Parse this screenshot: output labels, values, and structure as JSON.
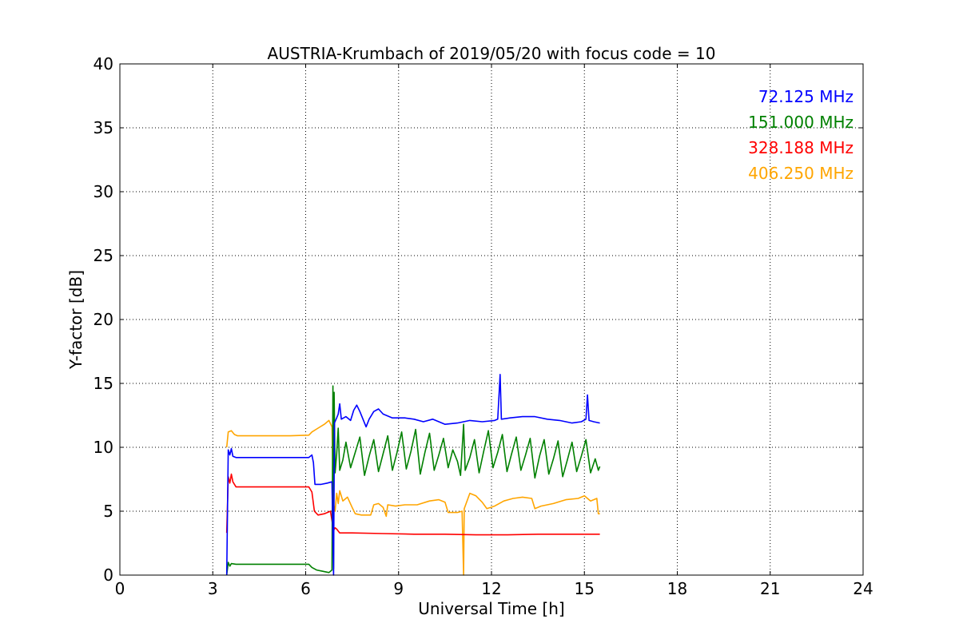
{
  "chart_data": {
    "type": "line",
    "title": "AUSTRIA-Krumbach of 2019/05/20 with focus code = 10",
    "xlabel": "Universal Time [h]",
    "ylabel": "Y-factor [dB]",
    "xlim": [
      0,
      24
    ],
    "ylim": [
      0,
      40
    ],
    "xticks": [
      0,
      3,
      6,
      9,
      12,
      15,
      18,
      21,
      24
    ],
    "yticks": [
      0,
      5,
      10,
      15,
      20,
      25,
      30,
      35,
      40
    ],
    "grid": true,
    "legend_placement": "top-right",
    "series": [
      {
        "name": "72.125 MHz",
        "color": "#0000ff",
        "points": [
          [
            3.45,
            0
          ],
          [
            3.5,
            9.8
          ],
          [
            3.55,
            9.4
          ],
          [
            3.6,
            9.9
          ],
          [
            3.65,
            9.3
          ],
          [
            3.75,
            9.2
          ],
          [
            4.5,
            9.2
          ],
          [
            5.5,
            9.2
          ],
          [
            6.1,
            9.2
          ],
          [
            6.2,
            9.4
          ],
          [
            6.25,
            8.8
          ],
          [
            6.3,
            7.1
          ],
          [
            6.5,
            7.1
          ],
          [
            6.7,
            7.2
          ],
          [
            6.85,
            7.3
          ],
          [
            6.9,
            0
          ],
          [
            6.93,
            11.9
          ],
          [
            7.0,
            12.3
          ],
          [
            7.05,
            12.6
          ],
          [
            7.1,
            13.4
          ],
          [
            7.15,
            12.2
          ],
          [
            7.3,
            12.4
          ],
          [
            7.45,
            12.1
          ],
          [
            7.55,
            12.9
          ],
          [
            7.65,
            13.3
          ],
          [
            7.75,
            12.8
          ],
          [
            7.85,
            12.2
          ],
          [
            7.95,
            11.6
          ],
          [
            8.05,
            12.2
          ],
          [
            8.2,
            12.8
          ],
          [
            8.35,
            13.0
          ],
          [
            8.5,
            12.6
          ],
          [
            8.8,
            12.3
          ],
          [
            9.2,
            12.3
          ],
          [
            9.5,
            12.2
          ],
          [
            9.8,
            12.0
          ],
          [
            10.1,
            12.2
          ],
          [
            10.5,
            11.8
          ],
          [
            10.9,
            11.9
          ],
          [
            11.3,
            12.1
          ],
          [
            11.7,
            12.0
          ],
          [
            12.1,
            12.1
          ],
          [
            12.2,
            12.2
          ],
          [
            12.28,
            15.7
          ],
          [
            12.32,
            12.2
          ],
          [
            12.6,
            12.3
          ],
          [
            13.0,
            12.4
          ],
          [
            13.4,
            12.4
          ],
          [
            13.8,
            12.2
          ],
          [
            14.2,
            12.1
          ],
          [
            14.6,
            11.9
          ],
          [
            14.9,
            12.0
          ],
          [
            15.05,
            12.2
          ],
          [
            15.1,
            14.1
          ],
          [
            15.15,
            12.1
          ],
          [
            15.3,
            12.0
          ],
          [
            15.5,
            11.9
          ]
        ]
      },
      {
        "name": "151.000 MHz",
        "color": "#008000",
        "points": [
          [
            3.45,
            0
          ],
          [
            3.5,
            1.0
          ],
          [
            3.55,
            0.7
          ],
          [
            3.6,
            0.9
          ],
          [
            3.75,
            0.85
          ],
          [
            4.5,
            0.85
          ],
          [
            5.5,
            0.85
          ],
          [
            6.1,
            0.85
          ],
          [
            6.2,
            0.6
          ],
          [
            6.35,
            0.4
          ],
          [
            6.55,
            0.3
          ],
          [
            6.75,
            0.2
          ],
          [
            6.85,
            0.4
          ],
          [
            6.88,
            14.8
          ],
          [
            6.9,
            0.5
          ],
          [
            6.92,
            14.3
          ],
          [
            6.95,
            8.0
          ],
          [
            7.0,
            9.5
          ],
          [
            7.05,
            11.5
          ],
          [
            7.1,
            8.2
          ],
          [
            7.2,
            9.0
          ],
          [
            7.3,
            10.4
          ],
          [
            7.45,
            8.4
          ],
          [
            7.6,
            9.6
          ],
          [
            7.75,
            10.8
          ],
          [
            7.9,
            7.8
          ],
          [
            8.05,
            9.3
          ],
          [
            8.2,
            10.6
          ],
          [
            8.35,
            8.1
          ],
          [
            8.5,
            9.5
          ],
          [
            8.65,
            10.9
          ],
          [
            8.8,
            8.2
          ],
          [
            8.95,
            9.6
          ],
          [
            9.1,
            11.2
          ],
          [
            9.25,
            8.3
          ],
          [
            9.4,
            9.7
          ],
          [
            9.55,
            11.4
          ],
          [
            9.7,
            7.9
          ],
          [
            9.85,
            9.6
          ],
          [
            10.0,
            11.1
          ],
          [
            10.15,
            8.2
          ],
          [
            10.3,
            9.4
          ],
          [
            10.45,
            10.7
          ],
          [
            10.6,
            8.4
          ],
          [
            10.75,
            9.8
          ],
          [
            10.9,
            8.9
          ],
          [
            11.0,
            7.8
          ],
          [
            11.1,
            11.8
          ],
          [
            11.15,
            8.2
          ],
          [
            11.3,
            9.2
          ],
          [
            11.45,
            10.6
          ],
          [
            11.6,
            8.0
          ],
          [
            11.75,
            9.7
          ],
          [
            11.9,
            11.3
          ],
          [
            12.05,
            8.4
          ],
          [
            12.2,
            9.6
          ],
          [
            12.35,
            11.0
          ],
          [
            12.5,
            8.1
          ],
          [
            12.65,
            9.5
          ],
          [
            12.8,
            10.8
          ],
          [
            12.95,
            8.2
          ],
          [
            13.1,
            9.4
          ],
          [
            13.25,
            10.7
          ],
          [
            13.4,
            7.6
          ],
          [
            13.55,
            9.3
          ],
          [
            13.7,
            10.6
          ],
          [
            13.85,
            7.9
          ],
          [
            14.0,
            9.1
          ],
          [
            14.15,
            10.5
          ],
          [
            14.3,
            7.7
          ],
          [
            14.45,
            9.0
          ],
          [
            14.6,
            10.4
          ],
          [
            14.75,
            8.1
          ],
          [
            14.9,
            9.3
          ],
          [
            15.05,
            10.6
          ],
          [
            15.2,
            8.0
          ],
          [
            15.35,
            9.1
          ],
          [
            15.45,
            8.2
          ],
          [
            15.5,
            8.5
          ]
        ]
      },
      {
        "name": "328.188 MHz",
        "color": "#ff0000",
        "points": [
          [
            3.45,
            3.3
          ],
          [
            3.5,
            7.7
          ],
          [
            3.55,
            7.2
          ],
          [
            3.6,
            7.9
          ],
          [
            3.65,
            7.3
          ],
          [
            3.75,
            6.9
          ],
          [
            4.5,
            6.9
          ],
          [
            5.5,
            6.9
          ],
          [
            6.1,
            6.9
          ],
          [
            6.2,
            6.5
          ],
          [
            6.28,
            5.0
          ],
          [
            6.4,
            4.7
          ],
          [
            6.6,
            4.8
          ],
          [
            6.8,
            5.0
          ],
          [
            6.9,
            3.5
          ],
          [
            6.95,
            3.7
          ],
          [
            7.0,
            3.6
          ],
          [
            7.1,
            3.3
          ],
          [
            7.5,
            3.3
          ],
          [
            8.5,
            3.25
          ],
          [
            9.5,
            3.2
          ],
          [
            10.5,
            3.2
          ],
          [
            11.5,
            3.15
          ],
          [
            12.5,
            3.15
          ],
          [
            13.5,
            3.2
          ],
          [
            14.5,
            3.2
          ],
          [
            15.5,
            3.2
          ]
        ]
      },
      {
        "name": "406.250 MHz",
        "color": "#ffa500",
        "points": [
          [
            3.45,
            10.0
          ],
          [
            3.5,
            11.2
          ],
          [
            3.6,
            11.3
          ],
          [
            3.7,
            11.0
          ],
          [
            3.8,
            10.9
          ],
          [
            4.5,
            10.9
          ],
          [
            5.5,
            10.9
          ],
          [
            6.1,
            10.95
          ],
          [
            6.2,
            11.2
          ],
          [
            6.4,
            11.5
          ],
          [
            6.6,
            11.8
          ],
          [
            6.75,
            12.1
          ],
          [
            6.85,
            11.6
          ],
          [
            6.9,
            5.6
          ],
          [
            6.95,
            5.0
          ],
          [
            7.0,
            6.4
          ],
          [
            7.05,
            5.6
          ],
          [
            7.1,
            6.6
          ],
          [
            7.2,
            5.8
          ],
          [
            7.35,
            6.1
          ],
          [
            7.5,
            5.3
          ],
          [
            7.6,
            4.8
          ],
          [
            7.8,
            4.7
          ],
          [
            8.1,
            4.7
          ],
          [
            8.2,
            5.5
          ],
          [
            8.35,
            5.6
          ],
          [
            8.5,
            5.3
          ],
          [
            8.6,
            4.6
          ],
          [
            8.65,
            5.5
          ],
          [
            8.9,
            5.4
          ],
          [
            9.2,
            5.5
          ],
          [
            9.6,
            5.5
          ],
          [
            10.0,
            5.8
          ],
          [
            10.3,
            5.9
          ],
          [
            10.5,
            5.7
          ],
          [
            10.6,
            4.9
          ],
          [
            10.9,
            4.9
          ],
          [
            11.05,
            5.0
          ],
          [
            11.1,
            0
          ],
          [
            11.12,
            5.2
          ],
          [
            11.3,
            6.4
          ],
          [
            11.5,
            6.2
          ],
          [
            11.7,
            5.7
          ],
          [
            11.85,
            5.2
          ],
          [
            12.1,
            5.4
          ],
          [
            12.4,
            5.8
          ],
          [
            12.7,
            6.0
          ],
          [
            13.0,
            6.1
          ],
          [
            13.3,
            6.0
          ],
          [
            13.4,
            5.2
          ],
          [
            13.6,
            5.4
          ],
          [
            14.0,
            5.6
          ],
          [
            14.4,
            5.9
          ],
          [
            14.8,
            6.0
          ],
          [
            15.0,
            6.2
          ],
          [
            15.2,
            5.8
          ],
          [
            15.4,
            6.0
          ],
          [
            15.45,
            4.8
          ],
          [
            15.5,
            4.8
          ]
        ]
      }
    ]
  }
}
